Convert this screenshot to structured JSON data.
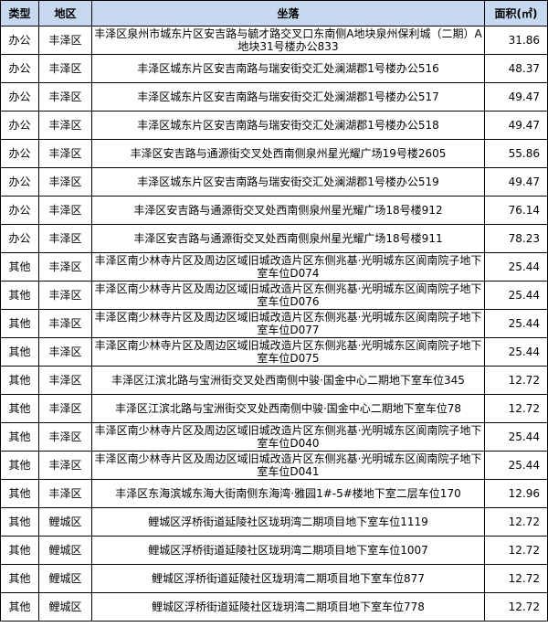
{
  "table": {
    "header": [
      "类型",
      "地区",
      "坐落",
      "面积(㎡)"
    ],
    "rows": [
      [
        "办公",
        "丰泽区",
        "丰泽区泉州市城东片区安吉路与毓才路交叉口东南侧A地块泉州保利城（二期）A地块31号楼办公833",
        31.86
      ],
      [
        "办公",
        "丰泽区",
        "丰泽区城东片区安吉南路与瑞安街交汇处澜湖郡1号楼办公516",
        48.37
      ],
      [
        "办公",
        "丰泽区",
        "丰泽区城东片区安吉南路与瑞安街交汇处澜湖郡1号楼办公517",
        49.47
      ],
      [
        "办公",
        "丰泽区",
        "丰泽区城东片区安吉南路与瑞安街交汇处澜湖郡1号楼办公518",
        49.47
      ],
      [
        "办公",
        "丰泽区",
        "丰泽区安吉路与通源街交叉处西南侧泉州星光耀广场19号楼2605",
        55.86
      ],
      [
        "办公",
        "丰泽区",
        "丰泽区城东片区安吉南路与瑞安街交汇处澜湖郡1号楼办公519",
        49.47
      ],
      [
        "办公",
        "丰泽区",
        "丰泽区安吉路与通源街交叉处西南侧泉州星光耀广场18号楼912",
        76.14
      ],
      [
        "办公",
        "丰泽区",
        "丰泽区安吉路与通源街交叉处西南侧泉州星光耀广场18号楼911",
        78.23
      ],
      [
        "其他",
        "丰泽区",
        "丰泽区南少林寺片区及周边区域旧城改造片区东侧兆基·光明城东区阆南院子地下室车位D074",
        25.44
      ],
      [
        "其他",
        "丰泽区",
        "丰泽区南少林寺片区及周边区域旧城改造片区东侧兆基·光明城东区阆南院子地下室车位D076",
        25.44
      ],
      [
        "其他",
        "丰泽区",
        "丰泽区南少林寺片区及周边区域旧城改造片区东侧兆基·光明城东区阆南院子地下室车位D077",
        25.44
      ],
      [
        "其他",
        "丰泽区",
        "丰泽区南少林寺片区及周边区域旧城改造片区东侧兆基·光明城东区阆南院子地下室车位D075",
        25.44
      ],
      [
        "其他",
        "丰泽区",
        "丰泽区江滨北路与宝洲街交叉处西南侧中骏·国金中心二期地下室车位345",
        12.72
      ],
      [
        "其他",
        "丰泽区",
        "丰泽区江滨北路与宝洲街交叉处西南侧中骏·国金中心二期地下室车位78",
        12.72
      ],
      [
        "其他",
        "丰泽区",
        "丰泽区南少林寺片区及周边区域旧城改造片区东侧兆基·光明城东区阆南院子地下室车位D040",
        25.44
      ],
      [
        "其他",
        "丰泽区",
        "丰泽区南少林寺片区及周边区域旧城改造片区东侧兆基·光明城东区阆南院子地下室车位D041",
        25.44
      ],
      [
        "其他",
        "丰泽区",
        "丰泽区东海滨城东海大街南侧东海湾·雅园1#-5#楼地下室二层车位170",
        12.96
      ],
      [
        "其他",
        "鲤城区",
        "鲤城区浮桥街道延陵社区珑玥湾二期项目地下室车位1119",
        12.72
      ],
      [
        "其他",
        "鲤城区",
        "鲤城区浮桥街道延陵社区珑玥湾二期项目地下室车位1007",
        12.72
      ],
      [
        "其他",
        "鲤城区",
        "鲤城区浮桥街道延陵社区珑玥湾二期项目地下室车位877",
        12.72
      ],
      [
        "其他",
        "鲤城区",
        "鲤城区浮桥街道延陵社区珑玥湾二期项目地下室车位778",
        12.72
      ]
    ]
  }
}
